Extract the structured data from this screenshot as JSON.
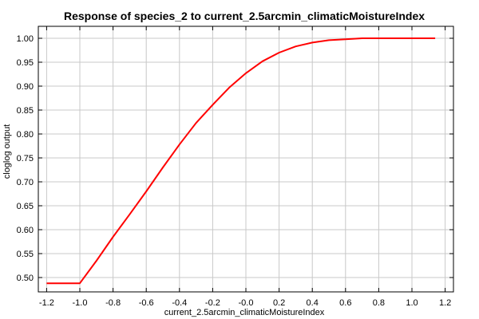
{
  "chart_data": {
    "type": "line",
    "title": "Response of species_2 to current_2.5arcmin_climaticMoistureIndex",
    "xlabel": "current_2.5arcmin_climaticMoistureIndex",
    "ylabel": "cloglog output",
    "xlim": [
      -1.25,
      1.25
    ],
    "ylim": [
      0.47,
      1.025
    ],
    "grid": true,
    "x_ticks": [
      -1.2,
      -1.0,
      -0.8,
      -0.6,
      -0.4,
      -0.2,
      0.0,
      0.2,
      0.4,
      0.6,
      0.8,
      1.0,
      1.2
    ],
    "x_tick_labels": [
      "-1.2",
      "-1.0",
      "-0.8",
      "-0.6",
      "-0.4",
      "-0.2",
      "-0.0",
      "0.2",
      "0.4",
      "0.6",
      "0.8",
      "1.0",
      "1.2"
    ],
    "y_ticks": [
      0.5,
      0.55,
      0.6,
      0.65,
      0.7,
      0.75,
      0.8,
      0.85,
      0.9,
      0.95,
      1.0
    ],
    "y_tick_labels": [
      "0.50",
      "0.55",
      "0.60",
      "0.65",
      "0.70",
      "0.75",
      "0.80",
      "0.85",
      "0.90",
      "0.95",
      "1.00"
    ],
    "series": [
      {
        "color": "#ff0000",
        "x": [
          -1.2,
          -1.0,
          -0.9,
          -0.8,
          -0.7,
          -0.6,
          -0.5,
          -0.4,
          -0.3,
          -0.2,
          -0.1,
          0.0,
          0.1,
          0.2,
          0.3,
          0.4,
          0.5,
          0.6,
          0.7,
          0.8,
          0.9,
          1.0,
          1.14
        ],
        "y": [
          0.488,
          0.488,
          0.535,
          0.585,
          0.632,
          0.68,
          0.73,
          0.778,
          0.823,
          0.861,
          0.897,
          0.927,
          0.952,
          0.97,
          0.983,
          0.991,
          0.996,
          0.998,
          1.0,
          1.0,
          1.0,
          1.0,
          1.0
        ]
      }
    ]
  }
}
